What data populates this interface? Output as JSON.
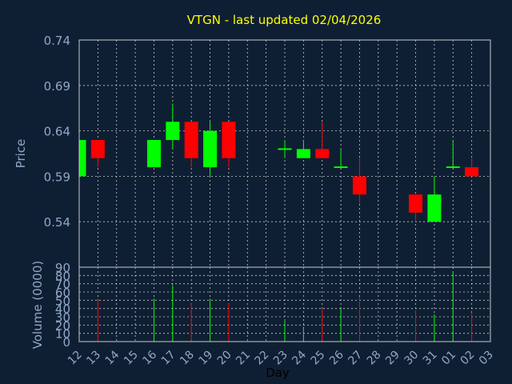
{
  "chart_data": {
    "type": "candlestick",
    "title": "VTGN - last updated 02/04/2026",
    "xlabel": "Day",
    "price_label": "Price",
    "volume_label": "Volume (0000)",
    "x_ticks": [
      "12",
      "13",
      "14",
      "15",
      "16",
      "17",
      "18",
      "19",
      "20",
      "21",
      "22",
      "23",
      "24",
      "25",
      "26",
      "27",
      "28",
      "29",
      "30",
      "31",
      "01",
      "02",
      "03"
    ],
    "price_ticks": [
      "0.74",
      "0.69",
      "0.64",
      "0.59",
      "0.54"
    ],
    "price_ylim": [
      0.49,
      0.74
    ],
    "volume_ticks": [
      "90",
      "80",
      "70",
      "60",
      "50",
      "40",
      "30",
      "20",
      "10",
      "0"
    ],
    "volume_ylim": [
      0,
      90
    ],
    "grid": true,
    "colors": {
      "background": "#0f1f33",
      "up": "#00ff00",
      "down": "#ff0000",
      "title": "#ffff00",
      "axis_text": "#8fa8c8",
      "grid": "#c8c8c8",
      "xlabel": "#000000"
    },
    "candles": [
      {
        "day": "12",
        "open": 0.59,
        "high": 0.63,
        "low": 0.59,
        "close": 0.63,
        "volume": 0
      },
      {
        "day": "13",
        "open": 0.63,
        "high": 0.63,
        "low": 0.6,
        "close": 0.61,
        "volume": 50
      },
      {
        "day": "16",
        "open": 0.6,
        "high": 0.63,
        "low": 0.6,
        "close": 0.63,
        "volume": 52
      },
      {
        "day": "17",
        "open": 0.63,
        "high": 0.67,
        "low": 0.62,
        "close": 0.65,
        "volume": 68
      },
      {
        "day": "18",
        "open": 0.65,
        "high": 0.65,
        "low": 0.6,
        "close": 0.61,
        "volume": 46
      },
      {
        "day": "19",
        "open": 0.6,
        "high": 0.65,
        "low": 0.59,
        "close": 0.64,
        "volume": 52
      },
      {
        "day": "20",
        "open": 0.65,
        "high": 0.65,
        "low": 0.6,
        "close": 0.61,
        "volume": 46
      },
      {
        "day": "23",
        "open": 0.62,
        "high": 0.63,
        "low": 0.61,
        "close": 0.62,
        "volume": 25
      },
      {
        "day": "24",
        "open": 0.61,
        "high": 0.63,
        "low": 0.61,
        "close": 0.62,
        "volume": 18
      },
      {
        "day": "25",
        "open": 0.62,
        "high": 0.65,
        "low": 0.61,
        "close": 0.61,
        "volume": 40
      },
      {
        "day": "26",
        "open": 0.6,
        "high": 0.62,
        "low": 0.6,
        "close": 0.6,
        "volume": 40
      },
      {
        "day": "27",
        "open": 0.59,
        "high": 0.61,
        "low": 0.56,
        "close": 0.57,
        "volume": 54
      },
      {
        "day": "30",
        "open": 0.57,
        "high": 0.57,
        "low": 0.54,
        "close": 0.55,
        "volume": 38
      },
      {
        "day": "31",
        "open": 0.54,
        "high": 0.59,
        "low": 0.54,
        "close": 0.57,
        "volume": 33
      },
      {
        "day": "01",
        "open": 0.6,
        "high": 0.63,
        "low": 0.6,
        "close": 0.6,
        "volume": 85
      },
      {
        "day": "02",
        "open": 0.6,
        "high": 0.61,
        "low": 0.59,
        "close": 0.59,
        "volume": 35
      }
    ]
  }
}
